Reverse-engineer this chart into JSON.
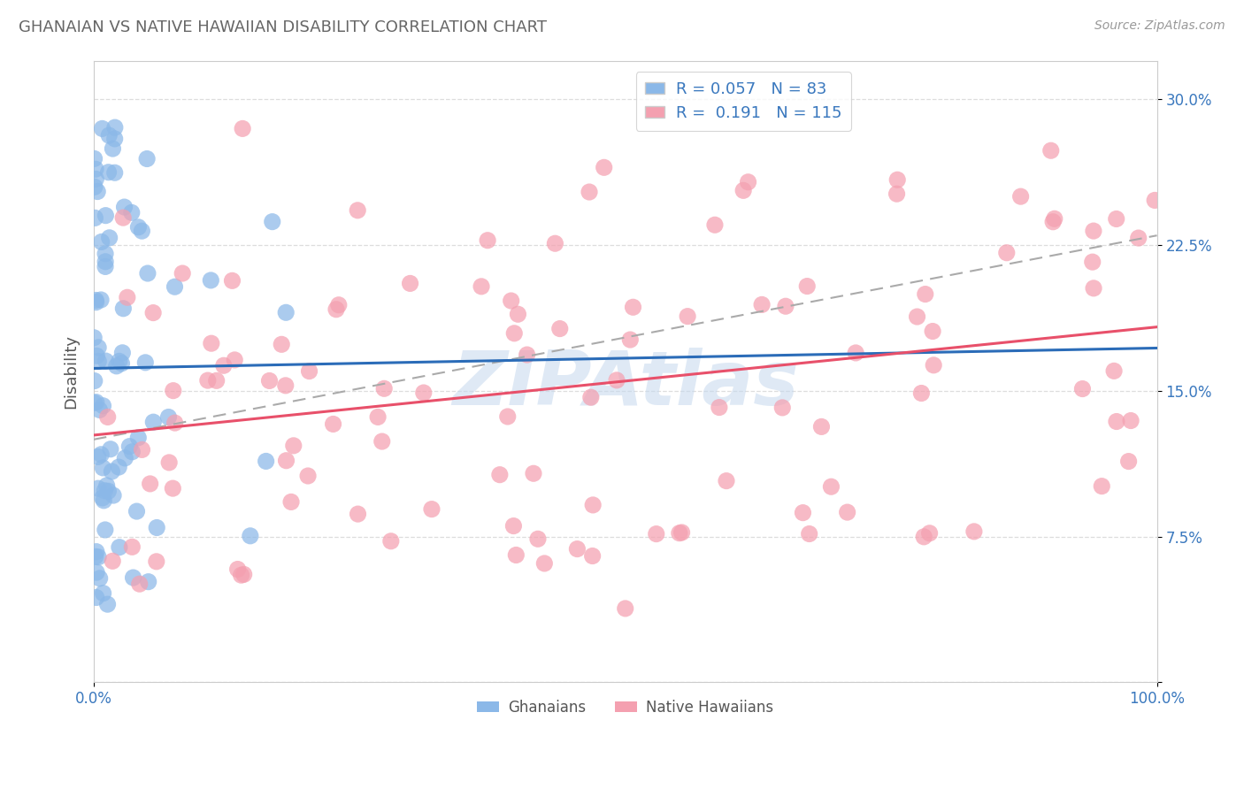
{
  "title": "GHANAIAN VS NATIVE HAWAIIAN DISABILITY CORRELATION CHART",
  "source": "Source: ZipAtlas.com",
  "ylabel": "Disability",
  "r_ghanaian": 0.057,
  "n_ghanaian": 83,
  "r_hawaiian": 0.191,
  "n_hawaiian": 115,
  "color_ghanaian": "#8BB8E8",
  "color_hawaiian": "#F4A0B0",
  "color_ghanaian_line": "#2B6CB8",
  "color_hawaiian_line": "#E8506A",
  "background_color": "#FFFFFF",
  "grid_color": "#DDDDDD",
  "title_color": "#666666",
  "tick_color": "#3A78BE",
  "label_color": "#555555",
  "watermark_text": "ZIPAtlas",
  "xlim": [
    0.0,
    1.0
  ],
  "ylim": [
    0.0,
    0.32
  ],
  "yticks": [
    0.0,
    0.075,
    0.15,
    0.225,
    0.3
  ],
  "yticklabels": [
    "",
    "7.5%",
    "15.0%",
    "22.5%",
    "30.0%"
  ]
}
